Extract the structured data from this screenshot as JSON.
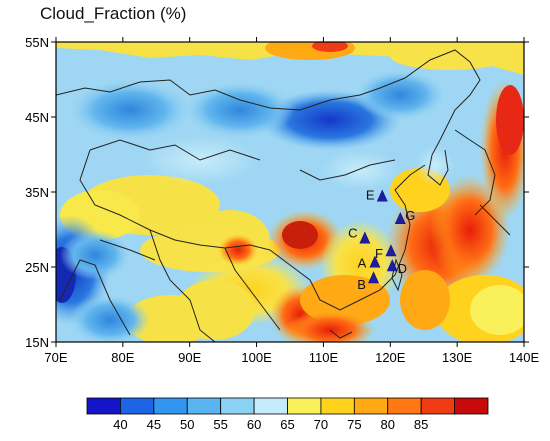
{
  "title": "Cloud_Fraction (%)",
  "map": {
    "lat_ticks": [
      {
        "label": "55N",
        "lat": 55
      },
      {
        "label": "45N",
        "lat": 45
      },
      {
        "label": "35N",
        "lat": 35
      },
      {
        "label": "25N",
        "lat": 25
      },
      {
        "label": "15N",
        "lat": 15
      }
    ],
    "lon_ticks": [
      {
        "label": "70E",
        "lon": 70
      },
      {
        "label": "80E",
        "lon": 80
      },
      {
        "label": "90E",
        "lon": 90
      },
      {
        "label": "100E",
        "lon": 100
      },
      {
        "label": "110E",
        "lon": 110
      },
      {
        "label": "120E",
        "lon": 120
      },
      {
        "label": "130E",
        "lon": 130
      },
      {
        "label": "140E",
        "lon": 140
      }
    ],
    "lon_range": [
      70,
      140
    ],
    "lat_range": [
      15,
      55
    ],
    "sites": [
      {
        "label": "E",
        "lon": 118.8,
        "lat": 34.3
      },
      {
        "label": "G",
        "lon": 121.5,
        "lat": 31.3
      },
      {
        "label": "C",
        "lon": 116.2,
        "lat": 28.7
      },
      {
        "label": "F",
        "lon": 120.1,
        "lat": 27.0
      },
      {
        "label": "A",
        "lon": 117.7,
        "lat": 25.5
      },
      {
        "label": "D",
        "lon": 120.3,
        "lat": 25.0
      },
      {
        "label": "B",
        "lon": 117.5,
        "lat": 23.4
      }
    ]
  },
  "colorbar": {
    "labels": [
      "40",
      "45",
      "50",
      "55",
      "60",
      "65",
      "70",
      "75",
      "80",
      "85"
    ],
    "colors": [
      "#1414c8",
      "#1e64e6",
      "#3296f0",
      "#5ab4f0",
      "#8cd2f5",
      "#c3ebfa",
      "#faf05a",
      "#ffd21e",
      "#ffaa14",
      "#ff7814",
      "#f03c14",
      "#c80a0a"
    ]
  }
}
